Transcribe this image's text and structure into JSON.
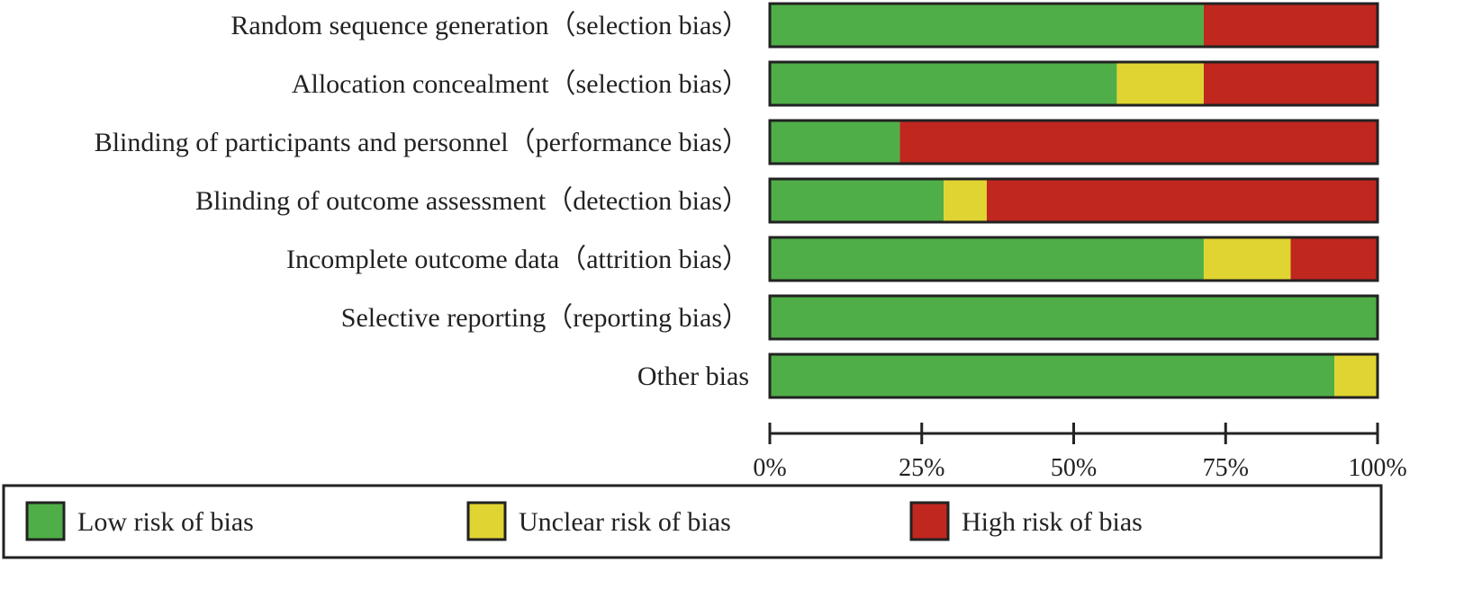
{
  "chart_data": {
    "type": "bar",
    "orientation": "horizontal",
    "stacked": true,
    "categories": [
      "Random sequence generation（selection bias）",
      "Allocation concealment（selection bias）",
      "Blinding of participants and personnel（performance bias）",
      "Blinding of outcome assessment（detection bias）",
      "Incomplete outcome data（attrition bias）",
      "Selective reporting（reporting bias）",
      "Other bias"
    ],
    "series": [
      {
        "name": "Low risk of bias",
        "color": "#4fae47",
        "values": [
          71.4,
          57.1,
          21.4,
          28.6,
          71.4,
          100,
          92.9
        ]
      },
      {
        "name": "Unclear risk of bias",
        "color": "#e0d432",
        "values": [
          0,
          14.3,
          0,
          7.1,
          14.3,
          0,
          7.1
        ]
      },
      {
        "name": "High risk of bias",
        "color": "#c0271f",
        "values": [
          28.6,
          28.6,
          78.6,
          64.3,
          14.3,
          0,
          0
        ]
      }
    ],
    "x_ticks": [
      "0%",
      "25%",
      "50%",
      "75%",
      "100%"
    ],
    "xlim": [
      0,
      100
    ],
    "grid": false,
    "legend_position": "bottom"
  }
}
